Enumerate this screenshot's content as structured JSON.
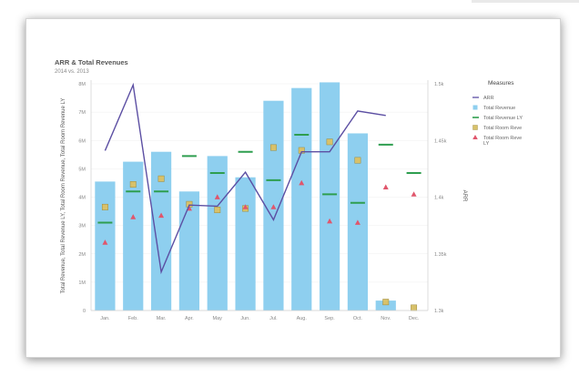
{
  "chart_data": {
    "type": "bar",
    "title": "ARR & Total Revenues",
    "subtitle": "2014 vs. 2013",
    "categories": [
      "Jan.",
      "Feb.",
      "Mar.",
      "Apr.",
      "May",
      "Jun.",
      "Jul.",
      "Aug.",
      "Sep.",
      "Oct.",
      "Nov.",
      "Dec."
    ],
    "ylabel_left": "Total Revenue, Total Revenue LY, Total Room Revenue, Total Room Revenue LY",
    "ylabel_right": "ARR",
    "y_left_ticks": [
      "0",
      "1M",
      "2M",
      "3M",
      "4M",
      "5M",
      "6M",
      "7M",
      "8M"
    ],
    "y_right_ticks": [
      "1.3k",
      "1.35k",
      "1.4k",
      "1.45k",
      "1.5k"
    ],
    "ylim_left": [
      0,
      8000000
    ],
    "ylim_right": [
      1300,
      1500
    ],
    "legend_title": "Measures",
    "legend_position": "right",
    "series": [
      {
        "name": "ARR",
        "kind": "line",
        "axis": "right",
        "color": "#5c4fa3",
        "values": [
          1441,
          1499,
          1334,
          1393,
          1392,
          1422,
          1380,
          1440,
          1440,
          1476,
          1472,
          null
        ]
      },
      {
        "name": "Total Revenue",
        "kind": "bar",
        "axis": "left",
        "color": "#8ecfef",
        "values": [
          4550000,
          5250000,
          5600000,
          4200000,
          5450000,
          4700000,
          7400000,
          7850000,
          8050000,
          6250000,
          350000,
          0
        ]
      },
      {
        "name": "Total Revenue LY",
        "kind": "dash",
        "axis": "left",
        "color": "#2e9e4f",
        "values": [
          3100000,
          4200000,
          4200000,
          5450000,
          4850000,
          5600000,
          4600000,
          6200000,
          4100000,
          3800000,
          5850000,
          4850000
        ]
      },
      {
        "name": "Total Room Reve",
        "kind": "square",
        "axis": "left",
        "color": "#d8c16a",
        "values": [
          3650000,
          4450000,
          4650000,
          3750000,
          3550000,
          3600000,
          5750000,
          5650000,
          5950000,
          5300000,
          300000,
          0
        ]
      },
      {
        "name": "Total Room Reve LY",
        "kind": "triangle",
        "axis": "left",
        "color": "#e0566c",
        "values": [
          2400000,
          3300000,
          3350000,
          3600000,
          4000000,
          3650000,
          3650000,
          4500000,
          3150000,
          3100000,
          4350000,
          4100000
        ]
      }
    ]
  }
}
